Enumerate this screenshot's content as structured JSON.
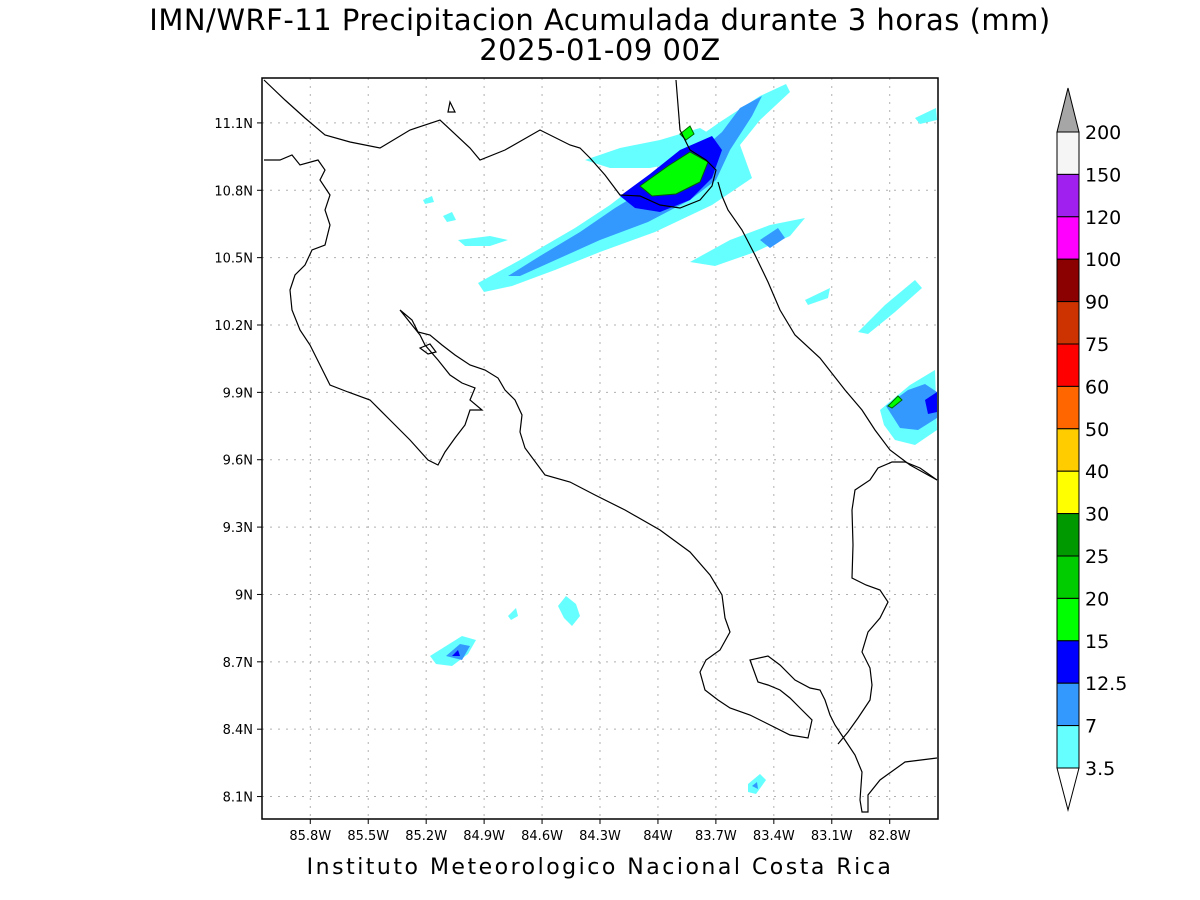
{
  "title": {
    "line1": "IMN/WRF-11 Precipitacion Acumulada durante 3 horas (mm)",
    "line2": "2025-01-09 00Z"
  },
  "footer": "Instituto Meteorologico Nacional Costa Rica",
  "map": {
    "lon_range": [
      -86.05,
      -82.55
    ],
    "lat_range": [
      8.0,
      11.3
    ],
    "lon_ticks": [
      "85.8W",
      "85.5W",
      "85.2W",
      "84.9W",
      "84.6W",
      "84.3W",
      "84W",
      "83.7W",
      "83.4W",
      "83.1W",
      "82.8W"
    ],
    "lat_ticks": [
      "11.1N",
      "10.8N",
      "10.5N",
      "10.2N",
      "9.9N",
      "9.6N",
      "9.3N",
      "9N",
      "8.7N",
      "8.4N",
      "8.1N"
    ],
    "grid": true
  },
  "legend": {
    "levels": [
      "200",
      "150",
      "120",
      "100",
      "90",
      "75",
      "60",
      "50",
      "40",
      "30",
      "25",
      "20",
      "15",
      "12.5",
      "7",
      "3.5"
    ],
    "colors": [
      "#f5f5f5",
      "#a020f0",
      "#ff00ff",
      "#8b0000",
      "#cc3300",
      "#ff0000",
      "#ff6600",
      "#ffcc00",
      "#ffff00",
      "#009900",
      "#00cc00",
      "#00ff00",
      "#0000ff",
      "#3399ff",
      "#66ffff"
    ],
    "top_arrow_color": "#a6a6a6",
    "bottom_arrow_color": "#ffffff"
  }
}
